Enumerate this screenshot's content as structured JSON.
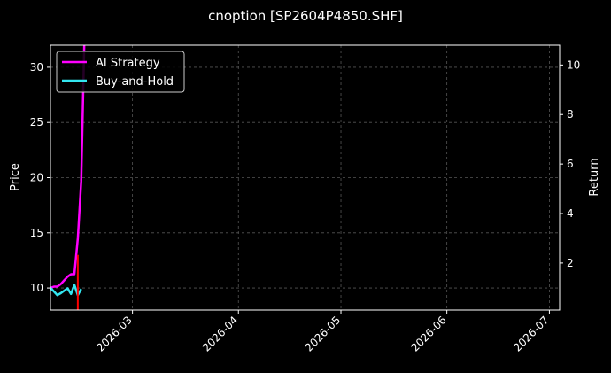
{
  "chart_data": {
    "type": "line",
    "title": "cnoption [SP2604P4850.SHF]",
    "ylabel_left": "Price",
    "ylabel_right": "Return",
    "xlabel": "",
    "x_axis": {
      "type": "date",
      "range": [
        "2026-02-05",
        "2026-07-04"
      ],
      "tick_labels": [
        "2026-03",
        "2026-04",
        "2026-05",
        "2026-06",
        "2026-07"
      ],
      "tick_dates": [
        "2026-03-01",
        "2026-04-01",
        "2026-05-01",
        "2026-06-01",
        "2026-07-01"
      ]
    },
    "y_left": {
      "range": [
        8,
        32
      ],
      "ticks": [
        10,
        15,
        20,
        25,
        30
      ]
    },
    "y_right": {
      "range": [
        0.1,
        10.8
      ],
      "ticks": [
        2,
        4,
        6,
        8,
        10
      ]
    },
    "grid": true,
    "legend": {
      "placement": "top-left"
    },
    "series": [
      {
        "name": "AI Strategy",
        "axis": "right",
        "color": "#ff00ff",
        "points": [
          [
            "2026-02-05",
            1.0
          ],
          [
            "2026-02-06",
            1.05
          ],
          [
            "2026-02-07",
            1.05
          ],
          [
            "2026-02-08",
            1.15
          ],
          [
            "2026-02-09",
            1.3
          ],
          [
            "2026-02-10",
            1.45
          ],
          [
            "2026-02-11",
            1.55
          ],
          [
            "2026-02-12",
            1.55
          ],
          [
            "2026-02-13",
            3.0
          ],
          [
            "2026-02-14",
            5.3
          ],
          [
            "2026-02-15",
            11.5
          ]
        ]
      },
      {
        "name": "Buy-and-Hold",
        "axis": "right",
        "color": "#33e6f0",
        "points": [
          [
            "2026-02-05",
            1.0
          ],
          [
            "2026-02-06",
            0.85
          ],
          [
            "2026-02-07",
            0.7
          ],
          [
            "2026-02-08",
            0.78
          ],
          [
            "2026-02-09",
            0.88
          ],
          [
            "2026-02-10",
            0.98
          ],
          [
            "2026-02-11",
            0.75
          ],
          [
            "2026-02-12",
            1.12
          ],
          [
            "2026-02-13",
            0.7
          ],
          [
            "2026-02-14",
            0.95
          ]
        ]
      }
    ],
    "markers": [
      {
        "type": "vertical-line",
        "color": "#ff0000",
        "x": "2026-02-13",
        "y_from": 7.5,
        "y_to": 13,
        "axis": "left"
      }
    ]
  }
}
